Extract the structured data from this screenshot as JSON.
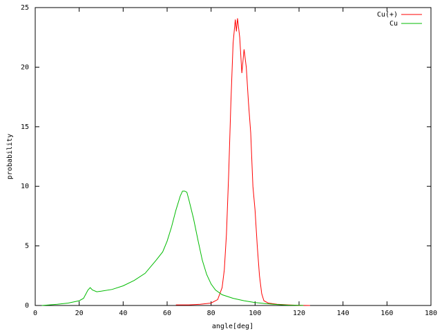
{
  "chart_data": {
    "type": "line",
    "x_label": "angle[deg]",
    "y_label": "probability",
    "xlim": [
      0,
      180
    ],
    "xticks": [
      0,
      20,
      40,
      60,
      80,
      100,
      120,
      140,
      160,
      180
    ],
    "ylim": [
      0,
      25
    ],
    "yticks": [
      0,
      5,
      10,
      15,
      20,
      25
    ],
    "grid": false,
    "legend": "top-right",
    "series": [
      {
        "name": "Cu(+)",
        "color": "#ff0000",
        "x": [
          64,
          70,
          75,
          80,
          83,
          85,
          86,
          87,
          88,
          89,
          90,
          91,
          91.5,
          92,
          93,
          94,
          95,
          96,
          97,
          98,
          99,
          100,
          101,
          102,
          103,
          104,
          106,
          110,
          115,
          120,
          125
        ],
        "values": [
          0.05,
          0.05,
          0.1,
          0.2,
          0.5,
          1.5,
          3,
          6,
          11,
          17,
          22,
          24,
          23,
          24.1,
          22.5,
          19.5,
          21.5,
          20,
          17,
          14.5,
          10,
          8,
          5,
          2.5,
          1,
          0.4,
          0.2,
          0.1,
          0.05,
          0.02,
          0
        ]
      },
      {
        "name": "Cu",
        "color": "#00bb00",
        "x": [
          3,
          10,
          15,
          20,
          22,
          24,
          25,
          26,
          28,
          30,
          35,
          40,
          45,
          50,
          55,
          58,
          60,
          62,
          64,
          66,
          67,
          68,
          69,
          70,
          72,
          74,
          76,
          78,
          80,
          82,
          85,
          90,
          95,
          100,
          105,
          110,
          115,
          120,
          122
        ],
        "values": [
          0,
          0.1,
          0.2,
          0.4,
          0.6,
          1.3,
          1.5,
          1.3,
          1.15,
          1.2,
          1.35,
          1.65,
          2.1,
          2.7,
          3.8,
          4.5,
          5.4,
          6.6,
          8,
          9.2,
          9.6,
          9.6,
          9.5,
          8.8,
          7.3,
          5.5,
          3.8,
          2.6,
          1.8,
          1.3,
          0.9,
          0.6,
          0.4,
          0.25,
          0.15,
          0.08,
          0.03,
          0.01,
          0
        ]
      }
    ]
  }
}
